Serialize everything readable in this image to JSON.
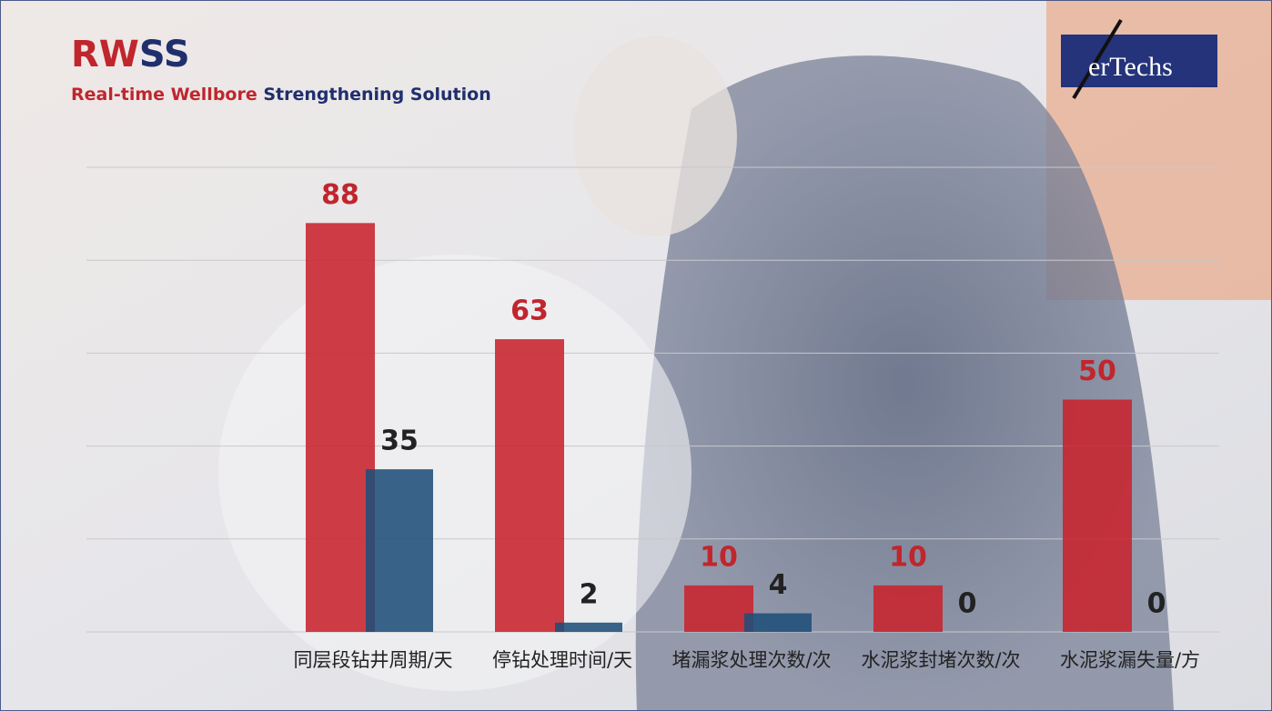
{
  "chart_data": {
    "type": "bar",
    "title": [
      "RW",
      "SS"
    ],
    "subtitle": [
      "Real-time Wellbore",
      "Strengthening Solution"
    ],
    "logo": "erTechs",
    "categories": [
      "同层段钻井周期/天",
      "停钻处理时间/天",
      "堵漏浆处理次数/次",
      "水泥浆封堵次数/次",
      "水泥浆漏失量/方"
    ],
    "series": [
      {
        "color": "#c8232c",
        "values": [
          88,
          63,
          10,
          10,
          50
        ]
      },
      {
        "color": "#1f4e79",
        "values": [
          35,
          2,
          4,
          0,
          0
        ]
      }
    ],
    "label_colors": [
      "#c0262d",
      "#222222"
    ],
    "ylim": [
      0,
      100
    ],
    "yticks": [
      0,
      20,
      40,
      60,
      80,
      100
    ],
    "grid": true
  }
}
